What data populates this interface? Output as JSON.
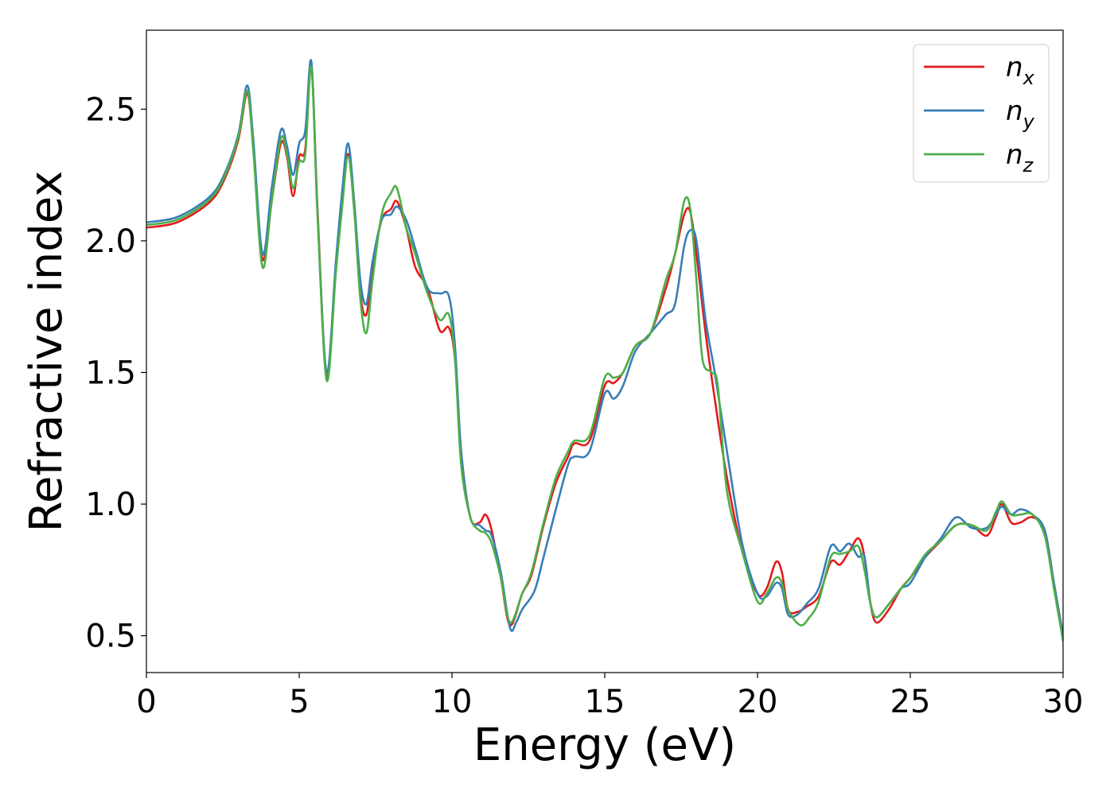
{
  "chart_data": {
    "type": "line",
    "title": "",
    "xlabel": "Energy (eV)",
    "ylabel": "Refractive index",
    "xlim": [
      0,
      30
    ],
    "ylim": [
      0.36,
      2.8
    ],
    "xticks": [
      0,
      5,
      10,
      15,
      20,
      25,
      30
    ],
    "xtick_labels": [
      "0",
      "5",
      "10",
      "15",
      "20",
      "25",
      "30"
    ],
    "yticks": [
      0.5,
      1.0,
      1.5,
      2.0,
      2.5
    ],
    "ytick_labels": [
      "0.5",
      "1.0",
      "1.5",
      "2.0",
      "2.5"
    ],
    "grid": false,
    "legend_position": "top-right",
    "series": [
      {
        "name": "n_x",
        "legend_base": "n",
        "legend_sub": "x",
        "color": "#e41a1c",
        "x": [
          0,
          1,
          2,
          2.5,
          3.0,
          3.3,
          3.5,
          3.8,
          4.1,
          4.4,
          4.6,
          4.8,
          5.0,
          5.2,
          5.4,
          5.6,
          5.9,
          6.2,
          6.4,
          6.6,
          6.8,
          7.0,
          7.2,
          7.4,
          7.7,
          8.0,
          8.2,
          8.5,
          8.8,
          9.2,
          9.6,
          9.9,
          10.1,
          10.3,
          10.6,
          10.9,
          11.1,
          11.3,
          11.6,
          11.9,
          12.3,
          12.6,
          13.0,
          13.4,
          13.8,
          14.0,
          14.5,
          15.0,
          15.3,
          15.6,
          16.0,
          16.5,
          17.0,
          17.3,
          17.6,
          17.8,
          18.0,
          18.3,
          18.6,
          19.0,
          19.5,
          20.0,
          20.3,
          20.6,
          20.8,
          21.0,
          21.3,
          21.6,
          22.0,
          22.4,
          22.7,
          23.0,
          23.3,
          23.5,
          23.7,
          23.9,
          24.3,
          24.7,
          25.0,
          25.5,
          26.0,
          26.5,
          27.0,
          27.5,
          27.8,
          28.0,
          28.3,
          28.6,
          29.0,
          29.4,
          29.7,
          30.0
        ],
        "y": [
          2.05,
          2.07,
          2.14,
          2.22,
          2.38,
          2.56,
          2.35,
          1.93,
          2.15,
          2.37,
          2.32,
          2.17,
          2.32,
          2.35,
          2.67,
          2.12,
          1.48,
          1.9,
          2.15,
          2.33,
          2.12,
          1.8,
          1.72,
          1.9,
          2.08,
          2.12,
          2.15,
          2.05,
          1.9,
          1.82,
          1.66,
          1.67,
          1.55,
          1.2,
          0.95,
          0.93,
          0.96,
          0.9,
          0.72,
          0.54,
          0.66,
          0.73,
          0.92,
          1.08,
          1.18,
          1.23,
          1.24,
          1.45,
          1.46,
          1.5,
          1.6,
          1.65,
          1.82,
          1.95,
          2.1,
          2.11,
          1.95,
          1.65,
          1.4,
          1.1,
          0.82,
          0.66,
          0.68,
          0.78,
          0.74,
          0.6,
          0.59,
          0.61,
          0.65,
          0.78,
          0.77,
          0.82,
          0.87,
          0.8,
          0.62,
          0.55,
          0.6,
          0.68,
          0.72,
          0.8,
          0.86,
          0.92,
          0.92,
          0.88,
          0.95,
          1.0,
          0.93,
          0.93,
          0.95,
          0.9,
          0.7,
          0.5
        ]
      },
      {
        "name": "n_y",
        "legend_base": "n",
        "legend_sub": "y",
        "color": "#377eb8",
        "x": [
          0,
          1,
          2,
          2.5,
          3.0,
          3.3,
          3.5,
          3.8,
          4.1,
          4.4,
          4.6,
          4.8,
          5.0,
          5.2,
          5.4,
          5.6,
          5.9,
          6.2,
          6.4,
          6.6,
          6.8,
          7.0,
          7.2,
          7.4,
          7.7,
          8.0,
          8.2,
          8.5,
          8.8,
          9.2,
          9.6,
          9.9,
          10.1,
          10.3,
          10.6,
          10.9,
          11.1,
          11.3,
          11.6,
          11.9,
          12.1,
          12.3,
          12.7,
          13.0,
          13.4,
          13.8,
          14.0,
          14.5,
          15.0,
          15.3,
          15.6,
          16.0,
          16.5,
          17.0,
          17.3,
          17.6,
          17.8,
          18.0,
          18.3,
          18.6,
          19.0,
          19.5,
          20.0,
          20.3,
          20.6,
          20.8,
          21.0,
          21.3,
          21.6,
          22.0,
          22.4,
          22.7,
          23.0,
          23.3,
          23.5,
          23.7,
          23.9,
          24.3,
          24.7,
          25.0,
          25.5,
          26.0,
          26.5,
          27.0,
          27.5,
          27.8,
          28.0,
          28.3,
          28.6,
          29.0,
          29.4,
          29.7,
          30.0
        ],
        "y": [
          2.07,
          2.09,
          2.16,
          2.24,
          2.4,
          2.59,
          2.38,
          1.95,
          2.2,
          2.42,
          2.36,
          2.25,
          2.37,
          2.42,
          2.68,
          2.1,
          1.5,
          1.92,
          2.18,
          2.37,
          2.15,
          1.85,
          1.76,
          1.92,
          2.08,
          2.1,
          2.13,
          2.08,
          1.97,
          1.82,
          1.8,
          1.79,
          1.6,
          1.2,
          0.95,
          0.92,
          0.9,
          0.88,
          0.74,
          0.53,
          0.55,
          0.6,
          0.67,
          0.8,
          0.98,
          1.15,
          1.18,
          1.2,
          1.42,
          1.4,
          1.45,
          1.58,
          1.65,
          1.72,
          1.76,
          1.98,
          2.04,
          2.0,
          1.7,
          1.5,
          1.2,
          0.85,
          0.66,
          0.65,
          0.7,
          0.68,
          0.58,
          0.58,
          0.62,
          0.68,
          0.84,
          0.82,
          0.85,
          0.8,
          0.8,
          0.62,
          0.57,
          0.62,
          0.68,
          0.7,
          0.8,
          0.87,
          0.95,
          0.91,
          0.91,
          0.96,
          0.99,
          0.96,
          0.98,
          0.96,
          0.9,
          0.7,
          0.5
        ]
      },
      {
        "name": "n_z",
        "legend_base": "n",
        "legend_sub": "z",
        "color": "#4daf4a",
        "x": [
          0,
          1,
          2,
          2.5,
          3.0,
          3.3,
          3.5,
          3.8,
          4.1,
          4.4,
          4.6,
          4.8,
          5.0,
          5.2,
          5.4,
          5.6,
          5.9,
          6.2,
          6.4,
          6.6,
          6.8,
          7.0,
          7.2,
          7.4,
          7.7,
          8.0,
          8.2,
          8.5,
          8.8,
          9.2,
          9.6,
          9.9,
          10.1,
          10.3,
          10.6,
          10.9,
          11.1,
          11.3,
          11.6,
          11.9,
          12.3,
          12.6,
          13.0,
          13.4,
          13.8,
          14.0,
          14.5,
          15.0,
          15.3,
          15.6,
          16.0,
          16.5,
          17.0,
          17.3,
          17.6,
          17.8,
          18.0,
          18.2,
          18.5,
          18.7,
          19.0,
          19.5,
          20.0,
          20.3,
          20.6,
          20.8,
          21.0,
          21.4,
          21.7,
          22.0,
          22.4,
          22.7,
          23.0,
          23.3,
          23.5,
          23.7,
          23.9,
          24.3,
          24.7,
          25.0,
          25.5,
          26.0,
          26.5,
          27.0,
          27.5,
          27.8,
          28.0,
          28.3,
          28.6,
          29.0,
          29.4,
          29.7,
          30.0
        ],
        "y": [
          2.06,
          2.08,
          2.15,
          2.23,
          2.39,
          2.57,
          2.34,
          1.9,
          2.15,
          2.39,
          2.33,
          2.2,
          2.3,
          2.33,
          2.66,
          2.1,
          1.47,
          1.88,
          2.12,
          2.32,
          2.12,
          1.78,
          1.65,
          1.85,
          2.1,
          2.18,
          2.2,
          2.05,
          1.95,
          1.8,
          1.7,
          1.72,
          1.55,
          1.15,
          0.95,
          0.9,
          0.89,
          0.85,
          0.72,
          0.55,
          0.66,
          0.74,
          0.93,
          1.1,
          1.2,
          1.24,
          1.26,
          1.48,
          1.48,
          1.5,
          1.6,
          1.65,
          1.85,
          1.95,
          2.15,
          2.12,
          1.85,
          1.55,
          1.5,
          1.45,
          1.05,
          0.82,
          0.63,
          0.66,
          0.72,
          0.7,
          0.6,
          0.54,
          0.57,
          0.63,
          0.8,
          0.81,
          0.82,
          0.84,
          0.75,
          0.62,
          0.57,
          0.62,
          0.68,
          0.72,
          0.81,
          0.86,
          0.92,
          0.92,
          0.9,
          0.97,
          1.01,
          0.96,
          0.96,
          0.96,
          0.88,
          0.68,
          0.48
        ]
      }
    ]
  }
}
